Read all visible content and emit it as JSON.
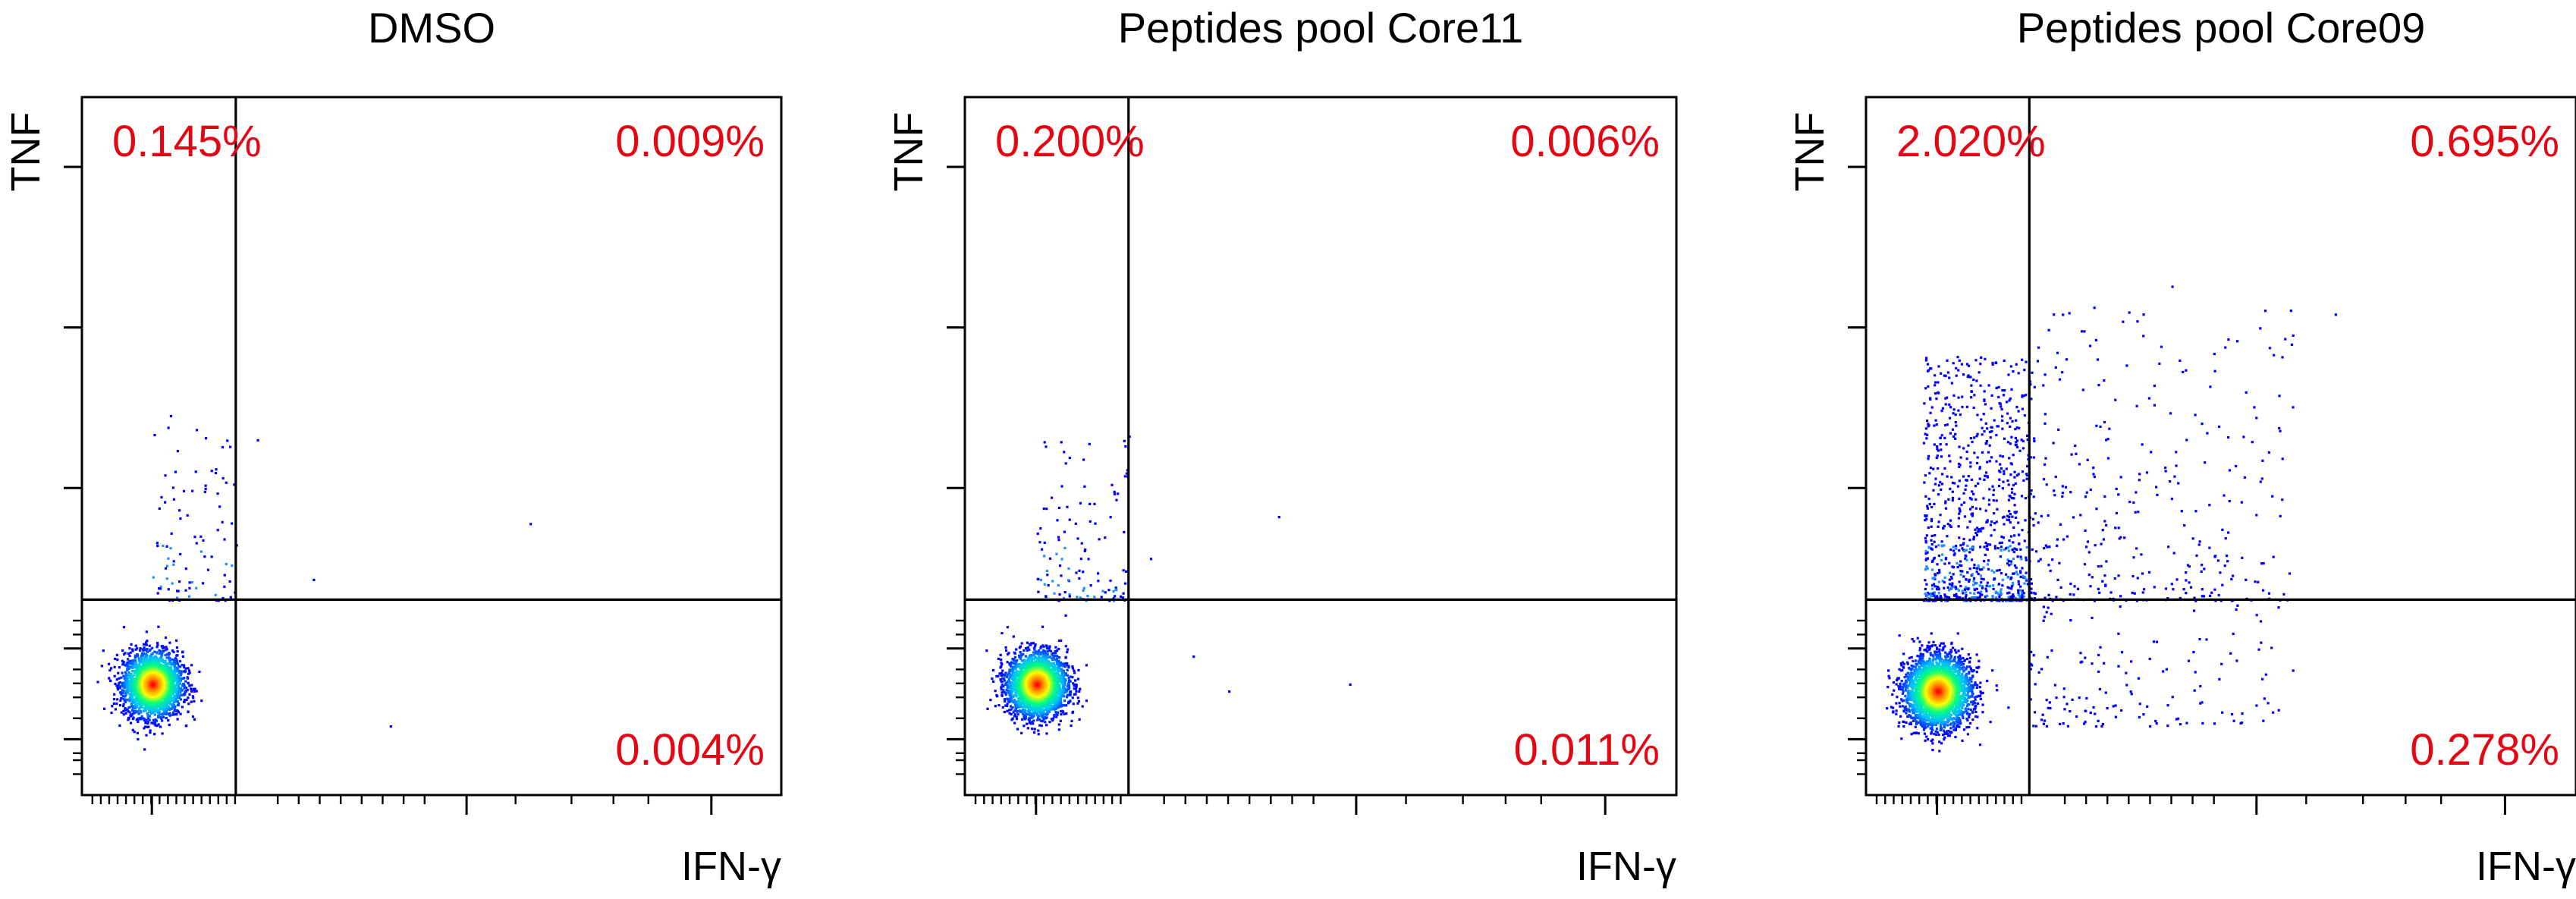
{
  "figure": {
    "gate_line_color": "#000000",
    "percent_color": "#e30613",
    "density_colormap": [
      "#0000ff",
      "#00bfff",
      "#00ff7f",
      "#ffff00",
      "#ff8c00",
      "#ff0000"
    ]
  },
  "chart_data": [
    {
      "type": "scatter",
      "subtype": "flow-cytometry-density-dot-plot",
      "title": "DMSO",
      "xlabel": "IFN-γ",
      "ylabel": "TNF",
      "x_scale": "log",
      "y_scale": "log",
      "gate": {
        "x": 0.22,
        "y": 0.28
      },
      "quadrants": {
        "upper_left": "0.145%",
        "upper_right": "0.009%",
        "lower_right": "0.004%"
      },
      "population": {
        "center": [
          0.1,
          0.16
        ],
        "spread": [
          0.05,
          0.055
        ],
        "count": 2600,
        "ul_spray": {
          "count": 95,
          "x": [
            0.1,
            0.22
          ],
          "y": [
            0.28,
            0.55
          ]
        },
        "outliers": [
          [
            0.25,
            0.51
          ],
          [
            0.33,
            0.31
          ],
          [
            0.44,
            0.1
          ],
          [
            0.64,
            0.39
          ]
        ]
      }
    },
    {
      "type": "scatter",
      "subtype": "flow-cytometry-density-dot-plot",
      "title": "Peptides pool Core11",
      "xlabel": "IFN-γ",
      "ylabel": "TNF",
      "x_scale": "log",
      "y_scale": "log",
      "gate": {
        "x": 0.23,
        "y": 0.28
      },
      "quadrants": {
        "upper_left": "0.200%",
        "upper_right": "0.006%",
        "lower_right": "0.011%"
      },
      "population": {
        "center": [
          0.1,
          0.16
        ],
        "spread": [
          0.05,
          0.055
        ],
        "count": 2600,
        "ul_spray": {
          "count": 120,
          "x": [
            0.1,
            0.23
          ],
          "y": [
            0.28,
            0.52
          ]
        },
        "outliers": [
          [
            0.26,
            0.34
          ],
          [
            0.32,
            0.2
          ],
          [
            0.37,
            0.15
          ],
          [
            0.44,
            0.4
          ],
          [
            0.54,
            0.16
          ]
        ]
      }
    },
    {
      "type": "scatter",
      "subtype": "flow-cytometry-density-dot-plot",
      "title": "Peptides pool Core09",
      "xlabel": "IFN-γ",
      "ylabel": "TNF",
      "x_scale": "log",
      "y_scale": "log",
      "gate": {
        "x": 0.23,
        "y": 0.28
      },
      "quadrants": {
        "upper_left": "2.020%",
        "upper_right": "0.695%",
        "lower_right": "0.278%"
      },
      "population": {
        "center": [
          0.1,
          0.15
        ],
        "spread": [
          0.055,
          0.06
        ],
        "count": 3000,
        "ul_spray": {
          "count": 900,
          "x": [
            0.08,
            0.23
          ],
          "y": [
            0.28,
            0.63
          ]
        },
        "ur_spray": {
          "count": 330,
          "x": [
            0.23,
            0.6
          ],
          "y": [
            0.28,
            0.7
          ]
        },
        "lr_spray": {
          "count": 140,
          "x": [
            0.23,
            0.58
          ],
          "y": [
            0.1,
            0.28
          ]
        },
        "outliers": [
          [
            0.43,
            0.73
          ],
          [
            0.6,
            0.66
          ],
          [
            0.66,
            0.69
          ],
          [
            0.6,
            0.18
          ],
          [
            0.5,
            0.12
          ]
        ]
      }
    }
  ]
}
